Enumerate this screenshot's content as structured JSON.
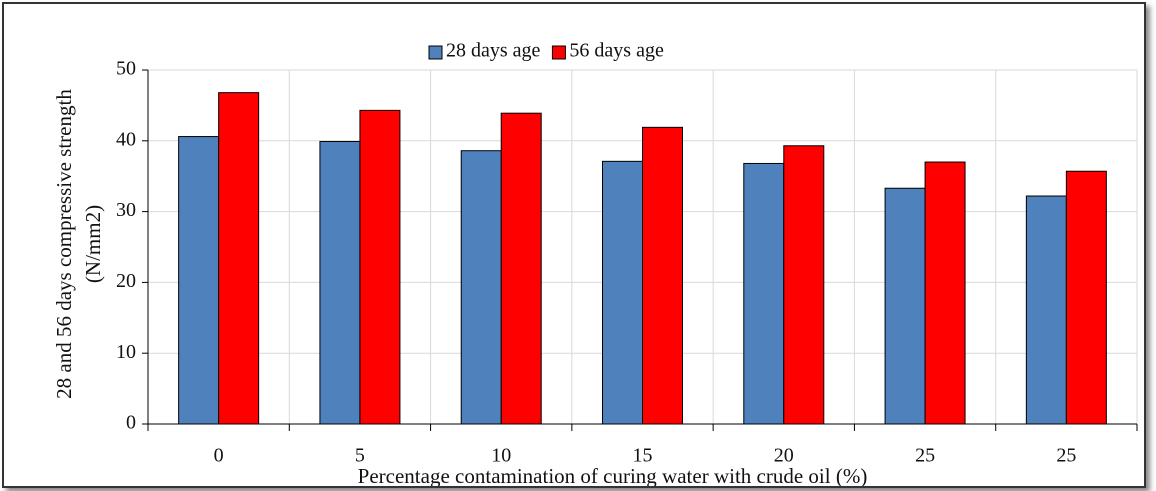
{
  "chart_data": {
    "type": "bar",
    "x_label": "Percentage contamination of curing water with crude oil (%)",
    "y_label": "28 and 56 days compressive strength (N/mm2)",
    "categories": [
      "0",
      "5",
      "10",
      "15",
      "20",
      "25",
      "25"
    ],
    "series": [
      {
        "name": "28 days age",
        "color": "#4f81bd",
        "values": [
          40.6,
          39.9,
          38.6,
          37.1,
          36.8,
          33.3,
          32.2
        ]
      },
      {
        "name": "56 days age",
        "color": "#ff0000",
        "values": [
          46.8,
          44.3,
          43.9,
          41.9,
          39.3,
          37.0,
          35.7
        ]
      }
    ],
    "ylim": [
      0,
      50
    ],
    "yticks": [
      0,
      10,
      20,
      30,
      40,
      50
    ],
    "grid": true,
    "legend": "top"
  }
}
